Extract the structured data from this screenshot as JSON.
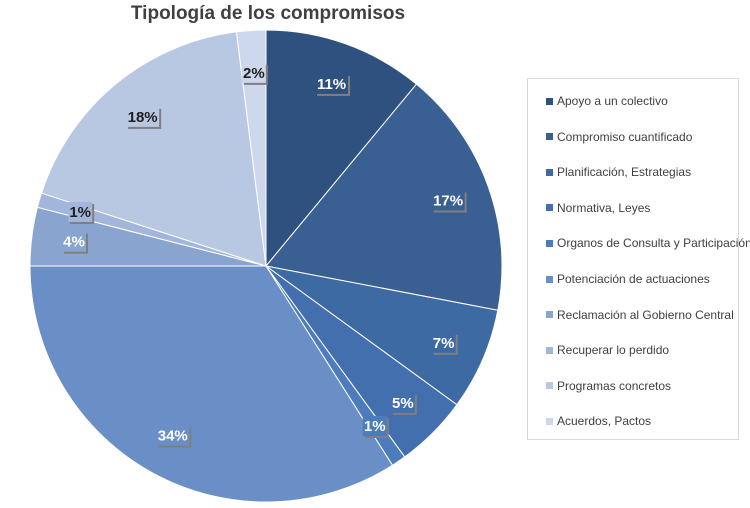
{
  "chart_data": {
    "type": "pie",
    "title": "Tipología de los compromisos",
    "categories": [
      "Apoyo a un colectivo",
      "Compromiso cuantificado",
      "Planificación, Estrategias",
      "Normativa, Leyes",
      "Organos de Consulta y Participación",
      "Potenciación de actuaciones",
      "Reclamación al Gobierno Central",
      "Recuperar lo perdido",
      "Programas concretos",
      "Acuerdos, Pactos"
    ],
    "values": [
      11,
      17,
      7,
      5,
      1,
      34,
      4,
      1,
      18,
      2
    ],
    "data_labels": [
      "11%",
      "17%",
      "7%",
      "5%",
      "1%",
      "34%",
      "4%",
      "1%",
      "18%",
      "2%"
    ],
    "colors": [
      "#2f5180",
      "#3a5f93",
      "#3e6aa3",
      "#446fae",
      "#4d7cbd",
      "#6a8fc7",
      "#8aa4d0",
      "#a2b6db",
      "#b8c7e2",
      "#cdd8ec"
    ],
    "legend_position": "right"
  }
}
